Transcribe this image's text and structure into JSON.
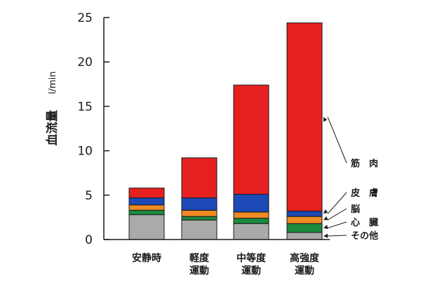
{
  "chart_data": {
    "type": "bar",
    "stacked": true,
    "title": "",
    "xlabel": "",
    "ylabel": "血流量",
    "ylabel_unit": "l/min",
    "ylim": [
      0,
      25
    ],
    "yticks": [
      0,
      5,
      10,
      15,
      20,
      25
    ],
    "grid": false,
    "categories": [
      [
        "安静時"
      ],
      [
        "軽度",
        "運動"
      ],
      [
        "中等度",
        "運動"
      ],
      [
        "高強度",
        "運動"
      ]
    ],
    "series": [
      {
        "name": "その他",
        "color": "#aaaaaa",
        "values": [
          2.8,
          2.2,
          1.8,
          0.8
        ]
      },
      {
        "name": "心臓",
        "color": "#1a8a3c",
        "values": [
          0.5,
          0.4,
          0.6,
          1.0
        ]
      },
      {
        "name": "脳",
        "color": "#f08a24",
        "values": [
          0.6,
          0.7,
          0.7,
          0.8
        ]
      },
      {
        "name": "皮膚",
        "color": "#1c49b5",
        "values": [
          0.8,
          1.4,
          2.0,
          0.6
        ]
      },
      {
        "name": "筋肉",
        "color": "#e62020",
        "values": [
          1.1,
          4.5,
          12.3,
          21.2
        ]
      }
    ],
    "legend": {
      "placement": "right",
      "entries": [
        {
          "series": "筋肉",
          "label": "筋　肉"
        },
        {
          "series": "皮膚",
          "label": "皮　膚"
        },
        {
          "series": "脳",
          "label": "脳"
        },
        {
          "series": "心臓",
          "label": "心　臓"
        },
        {
          "series": "その他",
          "label": "その他"
        }
      ]
    }
  }
}
